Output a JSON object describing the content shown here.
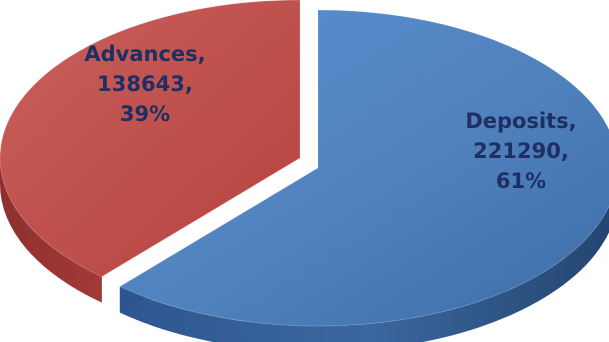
{
  "chart_data": {
    "type": "pie",
    "style": "3d-exploded",
    "title": "",
    "series": [
      {
        "name": "",
        "slices": [
          {
            "label": "Deposits",
            "value": 221290,
            "percent": "61%",
            "color": "#4f81bd"
          },
          {
            "label": "Advances",
            "value": 138643,
            "percent": "39%",
            "color": "#c0504d"
          }
        ]
      }
    ],
    "data_labels": [
      {
        "lines": [
          "Deposits,",
          "221290,",
          "61%"
        ]
      },
      {
        "lines": [
          "Advances,",
          "138643,",
          "39%"
        ]
      }
    ],
    "legend": "none"
  }
}
